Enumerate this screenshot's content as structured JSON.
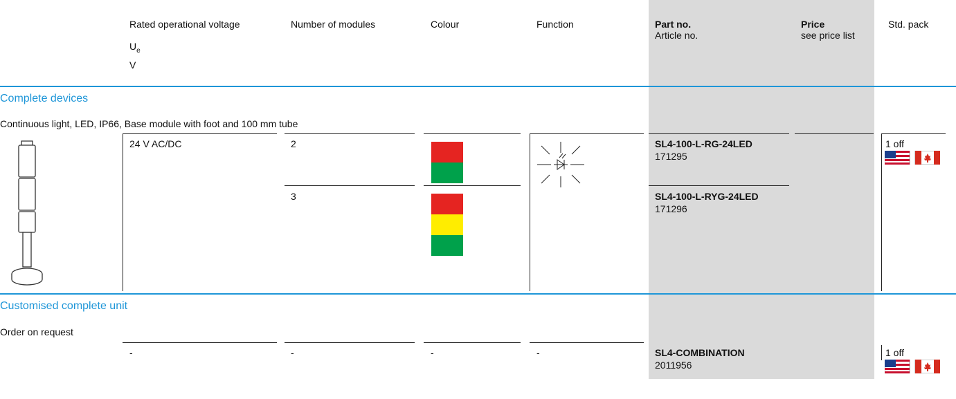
{
  "header": {
    "voltage": {
      "title": "Rated operational voltage",
      "symbol": "U",
      "symbol_sub": "e",
      "unit": "V"
    },
    "modules": "Number of modules",
    "colour": "Colour",
    "function": "Function",
    "part_no": {
      "title": "Part no.",
      "subtitle": "Article no."
    },
    "price": {
      "title": "Price",
      "subtitle": "see price list"
    },
    "std_pack": "Std. pack"
  },
  "sections": [
    {
      "title": "Complete devices",
      "description": "Continuous light, LED, IP66, Base module with foot and 100 mm tube",
      "voltage": "24 V AC/DC",
      "std_pack": "1 off",
      "rows": [
        {
          "modules": "2",
          "colours": [
            "#e52421",
            "#00a14b"
          ],
          "part_no": "SL4-100-L-RG-24LED",
          "article_no": "171295"
        },
        {
          "modules": "3",
          "colours": [
            "#e52421",
            "#ffed00",
            "#00a14b"
          ],
          "part_no": "SL4-100-L-RYG-24LED",
          "article_no": "171296"
        }
      ]
    },
    {
      "title": "Customised complete unit",
      "description": "Order on request",
      "voltage": "-",
      "modules": "-",
      "colour": "-",
      "function": "-",
      "part_no": "SL4-COMBINATION",
      "article_no": "2011956",
      "std_pack": "1 off"
    }
  ]
}
